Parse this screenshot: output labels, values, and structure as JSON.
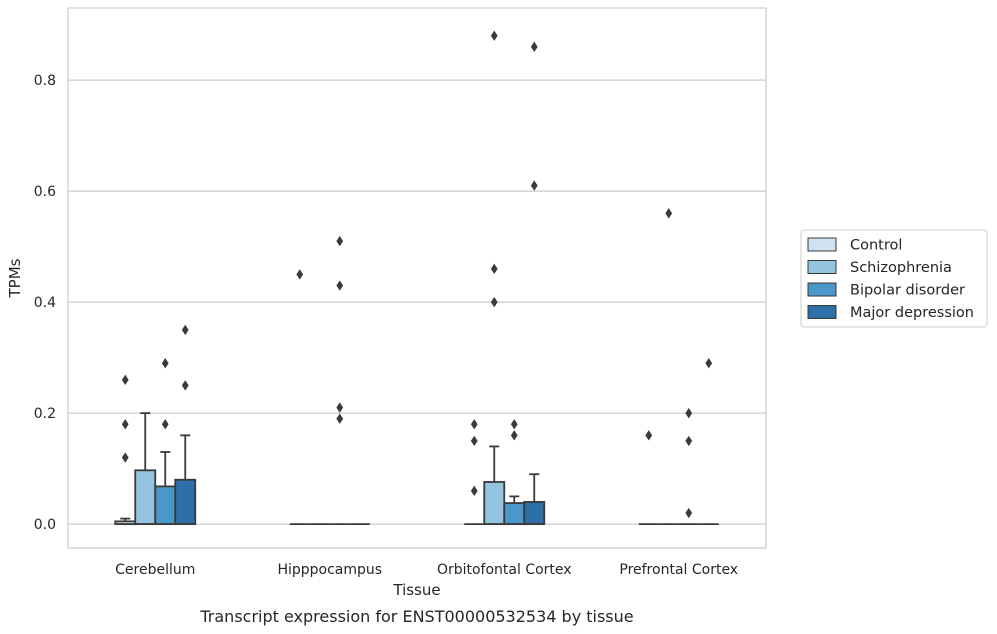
{
  "caption": "Transcript expression for ENST00000532534 by tissue",
  "chart_data": {
    "type": "box",
    "title": "",
    "xlabel": "Tissue",
    "ylabel": "TPMs",
    "ylim": [
      -0.043,
      0.93
    ],
    "yticks": [
      0.0,
      0.2,
      0.4,
      0.6,
      0.8
    ],
    "ytick_labels": [
      "0.0",
      "0.2",
      "0.4",
      "0.6",
      "0.8"
    ],
    "grid": true,
    "legend_position": "right",
    "categories": [
      "Cerebellum",
      "Hipppocampus",
      "Orbitofontal Cortex",
      "Prefrontal Cortex"
    ],
    "series": [
      {
        "name": "Control",
        "color": "#d0e1f2",
        "boxes": [
          {
            "q1": 0.0,
            "median": 0.0,
            "q3": 0.005,
            "whisker_low": 0.0,
            "whisker_high": 0.01,
            "outliers": [
              0.12,
              0.18,
              0.26
            ]
          },
          {
            "q1": 0.0,
            "median": 0.0,
            "q3": 0.0,
            "whisker_low": 0.0,
            "whisker_high": 0.0,
            "outliers": [
              0.45
            ]
          },
          {
            "q1": 0.0,
            "median": 0.0,
            "q3": 0.0,
            "whisker_low": 0.0,
            "whisker_high": 0.0,
            "outliers": [
              0.06,
              0.15,
              0.18
            ]
          },
          {
            "q1": 0.0,
            "median": 0.0,
            "q3": 0.0,
            "whisker_low": 0.0,
            "whisker_high": 0.0,
            "outliers": [
              0.16
            ]
          }
        ]
      },
      {
        "name": "Schizophrenia",
        "color": "#94c4df",
        "boxes": [
          {
            "q1": 0.0,
            "median": 0.0,
            "q3": 0.097,
            "whisker_low": 0.0,
            "whisker_high": 0.2,
            "outliers": []
          },
          {
            "q1": 0.0,
            "median": 0.0,
            "q3": 0.0,
            "whisker_low": 0.0,
            "whisker_high": 0.0,
            "outliers": []
          },
          {
            "q1": 0.0,
            "median": 0.0,
            "q3": 0.076,
            "whisker_low": 0.0,
            "whisker_high": 0.14,
            "outliers": [
              0.4,
              0.46,
              0.88
            ]
          },
          {
            "q1": 0.0,
            "median": 0.0,
            "q3": 0.0,
            "whisker_low": 0.0,
            "whisker_high": 0.0,
            "outliers": [
              0.56
            ]
          }
        ]
      },
      {
        "name": "Bipolar disorder",
        "color": "#4a98c9",
        "boxes": [
          {
            "q1": 0.0,
            "median": 0.0,
            "q3": 0.068,
            "whisker_low": 0.0,
            "whisker_high": 0.13,
            "outliers": [
              0.18,
              0.29
            ]
          },
          {
            "q1": 0.0,
            "median": 0.0,
            "q3": 0.0,
            "whisker_low": 0.0,
            "whisker_high": 0.0,
            "outliers": [
              0.19,
              0.21,
              0.43,
              0.51
            ]
          },
          {
            "q1": 0.0,
            "median": 0.0,
            "q3": 0.038,
            "whisker_low": 0.0,
            "whisker_high": 0.05,
            "outliers": [
              0.16,
              0.18
            ]
          },
          {
            "q1": 0.0,
            "median": 0.0,
            "q3": 0.0,
            "whisker_low": 0.0,
            "whisker_high": 0.0,
            "outliers": [
              0.02,
              0.15,
              0.2
            ]
          }
        ]
      },
      {
        "name": "Major depression",
        "color": "#2e6fa8",
        "boxes": [
          {
            "q1": 0.0,
            "median": 0.0,
            "q3": 0.08,
            "whisker_low": 0.0,
            "whisker_high": 0.16,
            "outliers": [
              0.25,
              0.35
            ]
          },
          {
            "q1": 0.0,
            "median": 0.0,
            "q3": 0.0,
            "whisker_low": 0.0,
            "whisker_high": 0.0,
            "outliers": []
          },
          {
            "q1": 0.0,
            "median": 0.0,
            "q3": 0.04,
            "whisker_low": 0.0,
            "whisker_high": 0.09,
            "outliers": [
              0.61,
              0.86
            ]
          },
          {
            "q1": 0.0,
            "median": 0.0,
            "q3": 0.0,
            "whisker_low": 0.0,
            "whisker_high": 0.0,
            "outliers": [
              0.29
            ]
          }
        ]
      }
    ]
  }
}
